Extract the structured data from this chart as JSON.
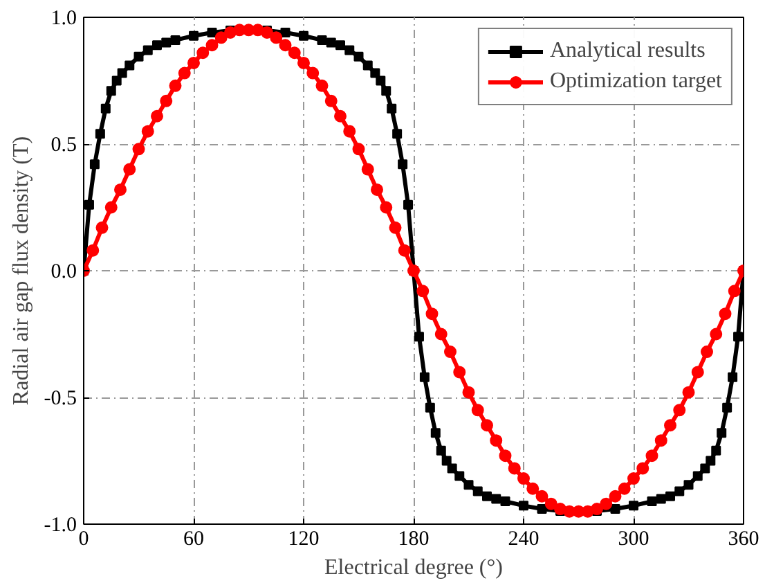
{
  "chart_data": {
    "type": "line",
    "xlabel": "Electrical degree (°)",
    "ylabel": "Radial air gap flux density (T)",
    "xlim": [
      0,
      360
    ],
    "ylim": [
      -1.0,
      1.0
    ],
    "xticks": [
      0,
      60,
      120,
      180,
      240,
      300,
      360
    ],
    "yticks": [
      {
        "value": -1.0,
        "label": "-1.0"
      },
      {
        "value": -0.5,
        "label": "-0.5"
      },
      {
        "value": 0,
        "label": "0.0"
      },
      {
        "value": 0.5,
        "label": "0.5"
      },
      {
        "value": 1.0,
        "label": "1.0"
      }
    ],
    "grid": true,
    "legend": "top right",
    "line_style": "solid",
    "series": [
      {
        "name": "Analytical results",
        "color": "#000000",
        "marker": "square",
        "x": [
          0,
          3,
          6,
          9,
          12,
          15,
          18,
          21,
          25,
          30,
          35,
          40,
          45,
          50,
          60,
          70,
          80,
          100,
          110,
          120,
          130,
          135,
          140,
          145,
          150,
          155,
          159,
          162,
          165,
          168,
          171,
          174,
          177,
          180,
          183,
          186,
          189,
          192,
          195,
          198,
          201,
          205,
          210,
          215,
          220,
          225,
          230,
          240,
          250,
          260,
          280,
          290,
          300,
          310,
          315,
          320,
          325,
          330,
          335,
          339,
          342,
          345,
          348,
          351,
          354,
          357,
          360
        ],
        "values": [
          0,
          0.26,
          0.42,
          0.54,
          0.64,
          0.71,
          0.75,
          0.78,
          0.81,
          0.845,
          0.87,
          0.89,
          0.9,
          0.91,
          0.927,
          0.94,
          0.948,
          0.948,
          0.94,
          0.927,
          0.91,
          0.9,
          0.89,
          0.87,
          0.845,
          0.81,
          0.78,
          0.75,
          0.71,
          0.64,
          0.54,
          0.42,
          0.26,
          0,
          -0.26,
          -0.42,
          -0.54,
          -0.64,
          -0.71,
          -0.75,
          -0.78,
          -0.81,
          -0.845,
          -0.87,
          -0.89,
          -0.9,
          -0.91,
          -0.927,
          -0.94,
          -0.948,
          -0.948,
          -0.94,
          -0.927,
          -0.91,
          -0.9,
          -0.89,
          -0.87,
          -0.845,
          -0.81,
          -0.78,
          -0.75,
          -0.71,
          -0.64,
          -0.54,
          -0.42,
          -0.26,
          0
        ]
      },
      {
        "name": "Optimization target",
        "color": "#ff0000",
        "marker": "circle",
        "x": [
          0,
          5,
          10,
          15,
          20,
          25,
          30,
          35,
          40,
          45,
          50,
          55,
          60,
          65,
          70,
          75,
          80,
          85,
          90,
          95,
          100,
          105,
          110,
          115,
          120,
          125,
          130,
          135,
          140,
          145,
          150,
          155,
          160,
          165,
          170,
          175,
          180,
          185,
          190,
          195,
          200,
          205,
          210,
          215,
          220,
          225,
          230,
          235,
          240,
          245,
          250,
          255,
          260,
          265,
          270,
          275,
          280,
          285,
          290,
          295,
          300,
          305,
          310,
          315,
          320,
          325,
          330,
          335,
          340,
          345,
          350,
          355,
          360
        ],
        "values": [
          0,
          0.08,
          0.17,
          0.25,
          0.32,
          0.4,
          0.48,
          0.55,
          0.61,
          0.67,
          0.73,
          0.78,
          0.82,
          0.86,
          0.89,
          0.92,
          0.94,
          0.95,
          0.95,
          0.95,
          0.94,
          0.92,
          0.89,
          0.86,
          0.82,
          0.78,
          0.73,
          0.67,
          0.61,
          0.55,
          0.48,
          0.4,
          0.32,
          0.25,
          0.17,
          0.08,
          0,
          -0.08,
          -0.17,
          -0.25,
          -0.32,
          -0.4,
          -0.48,
          -0.55,
          -0.61,
          -0.67,
          -0.73,
          -0.78,
          -0.82,
          -0.86,
          -0.89,
          -0.92,
          -0.94,
          -0.95,
          -0.95,
          -0.95,
          -0.94,
          -0.92,
          -0.89,
          -0.86,
          -0.82,
          -0.78,
          -0.73,
          -0.67,
          -0.61,
          -0.55,
          -0.48,
          -0.4,
          -0.32,
          -0.25,
          -0.17,
          -0.08,
          0
        ]
      }
    ]
  }
}
